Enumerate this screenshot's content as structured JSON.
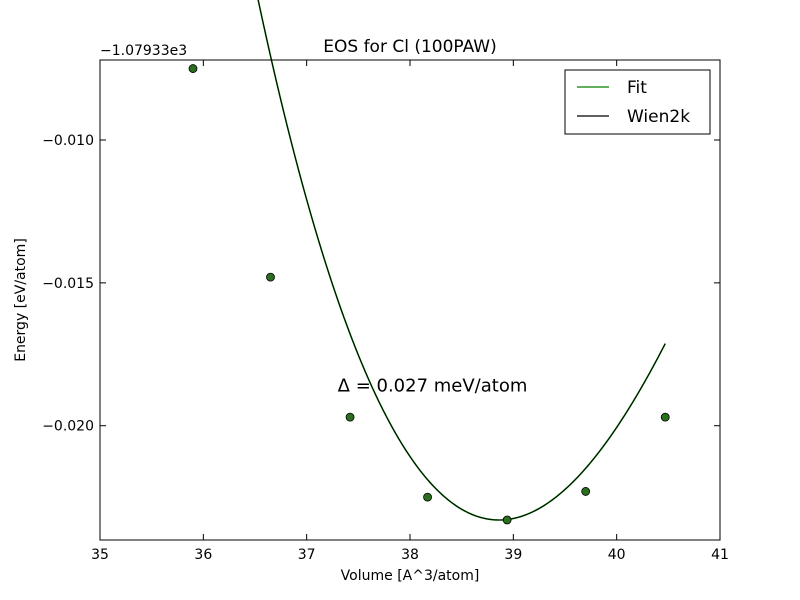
{
  "chart_data": {
    "type": "line",
    "title": "EOS for Cl (100PAW)",
    "xlabel": "Volume [A^3/atom]",
    "ylabel": "Energy [eV/atom]",
    "y_offset_label": "−1.07933e3",
    "xlim": [
      35,
      41
    ],
    "ylim": [
      -0.024,
      -0.0072
    ],
    "x_ticks": [
      35,
      36,
      37,
      38,
      39,
      40,
      41
    ],
    "x_tick_labels": [
      "35",
      "36",
      "37",
      "38",
      "39",
      "40",
      "41"
    ],
    "y_ticks": [
      -0.01,
      -0.015,
      -0.02
    ],
    "y_tick_labels": [
      "−0.010",
      "−0.015",
      "−0.020"
    ],
    "points": {
      "x": [
        35.9,
        36.65,
        37.42,
        38.17,
        38.94,
        39.7,
        40.47
      ],
      "y": [
        -0.0075,
        -0.0148,
        -0.0197,
        -0.0225,
        -0.0233,
        -0.0223,
        -0.0197
      ],
      "color": "#2a6e1e"
    },
    "fit_curve": {
      "x0": 38.862,
      "y0": -0.0233,
      "a": 0.00278,
      "b": -0.000244,
      "x_range": [
        35.9,
        40.47
      ]
    },
    "series": [
      {
        "name": "Fit",
        "color": "#008000"
      },
      {
        "name": "Wien2k",
        "color": "#000000"
      }
    ],
    "legend_position": "top-right",
    "annotation": {
      "text": "Δ = 0.027 meV/atom",
      "x": 37.3,
      "y": -0.0188
    },
    "grid": false
  }
}
